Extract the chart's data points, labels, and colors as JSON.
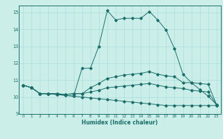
{
  "title": "",
  "xlabel": "Humidex (Indice chaleur)",
  "ylabel": "",
  "bg_color": "#cceee8",
  "line_color": "#1a6e6a",
  "grid_color": "#aadddd",
  "xlim": [
    -0.5,
    23.5
  ],
  "ylim": [
    9,
    15.4
  ],
  "yticks": [
    9,
    10,
    11,
    12,
    13,
    14,
    15
  ],
  "xticks": [
    0,
    1,
    2,
    3,
    4,
    5,
    6,
    7,
    8,
    9,
    10,
    11,
    12,
    13,
    14,
    15,
    16,
    17,
    18,
    19,
    20,
    21,
    22,
    23
  ],
  "lines": [
    {
      "x": [
        0,
        1,
        2,
        3,
        4,
        5,
        6,
        7,
        8,
        9,
        10,
        11,
        12,
        13,
        14,
        15,
        16,
        17,
        18,
        19,
        20,
        21,
        22,
        23
      ],
      "y": [
        10.7,
        10.55,
        10.2,
        10.2,
        10.15,
        10.1,
        10.05,
        10.0,
        9.95,
        9.9,
        9.85,
        9.8,
        9.75,
        9.7,
        9.65,
        9.6,
        9.55,
        9.5,
        9.5,
        9.5,
        9.5,
        9.5,
        9.5,
        9.5
      ]
    },
    {
      "x": [
        0,
        1,
        2,
        3,
        4,
        5,
        6,
        7,
        8,
        9,
        10,
        11,
        12,
        13,
        14,
        15,
        16,
        17,
        18,
        19,
        20,
        21,
        22,
        23
      ],
      "y": [
        10.7,
        10.55,
        10.2,
        10.2,
        10.2,
        10.15,
        10.2,
        10.2,
        10.3,
        10.4,
        10.55,
        10.6,
        10.65,
        10.7,
        10.75,
        10.8,
        10.7,
        10.6,
        10.55,
        10.5,
        10.4,
        10.35,
        10.3,
        9.55
      ]
    },
    {
      "x": [
        0,
        1,
        2,
        3,
        4,
        5,
        6,
        7,
        8,
        9,
        10,
        11,
        12,
        13,
        14,
        15,
        16,
        17,
        18,
        19,
        20,
        21,
        22,
        23
      ],
      "y": [
        10.7,
        10.55,
        10.2,
        10.2,
        10.2,
        10.15,
        10.2,
        10.2,
        10.55,
        10.8,
        11.1,
        11.2,
        11.3,
        11.35,
        11.4,
        11.5,
        11.35,
        11.25,
        11.2,
        10.85,
        10.85,
        10.8,
        10.75,
        9.55
      ]
    },
    {
      "x": [
        0,
        1,
        2,
        3,
        4,
        5,
        6,
        7,
        8,
        9,
        10,
        11,
        12,
        13,
        14,
        15,
        16,
        17,
        18,
        19,
        20,
        21,
        22,
        23
      ],
      "y": [
        10.7,
        10.55,
        10.2,
        10.2,
        10.15,
        10.1,
        10.05,
        11.7,
        11.7,
        13.0,
        15.1,
        14.55,
        14.65,
        14.65,
        14.65,
        15.05,
        14.55,
        13.95,
        12.85,
        11.35,
        10.85,
        10.45,
        10.05,
        9.55
      ]
    }
  ]
}
